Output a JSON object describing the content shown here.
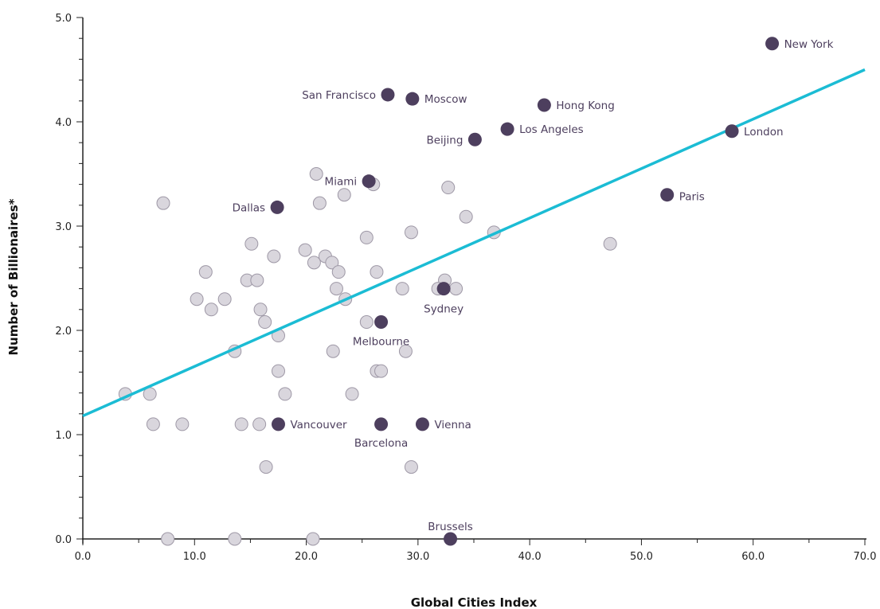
{
  "chart_data": {
    "type": "scatter",
    "title": "",
    "xlabel": "Global Cities Index",
    "ylabel": "Number of Billionaires*",
    "xlim": [
      0,
      70
    ],
    "ylim": [
      0,
      5
    ],
    "x_ticks": [
      "0.0",
      "10.0",
      "20.0",
      "30.0",
      "40.0",
      "50.0",
      "60.0",
      "70.0"
    ],
    "y_ticks": [
      "0.0",
      "1.0",
      "2.0",
      "3.0",
      "4.0",
      "5.0"
    ],
    "grid": false,
    "trendline": {
      "x": [
        0,
        70
      ],
      "y": [
        1.18,
        4.5
      ],
      "color": "#1bbcd4"
    },
    "colors": {
      "highlight": "#4d3f5e",
      "other_fill": "#d9d6dd",
      "other_stroke": "#9e98a6"
    },
    "labeled_points": [
      {
        "label": "New York",
        "x": 61.7,
        "y": 4.75
      },
      {
        "label": "San Francisco",
        "x": 27.3,
        "y": 4.26
      },
      {
        "label": "Moscow",
        "x": 29.5,
        "y": 4.22
      },
      {
        "label": "Hong Kong",
        "x": 41.3,
        "y": 4.16
      },
      {
        "label": "Los Angeles",
        "x": 38.0,
        "y": 3.93
      },
      {
        "label": "London",
        "x": 58.1,
        "y": 3.91
      },
      {
        "label": "Beijing",
        "x": 35.1,
        "y": 3.83
      },
      {
        "label": "Miami",
        "x": 25.6,
        "y": 3.43
      },
      {
        "label": "Paris",
        "x": 52.3,
        "y": 3.3
      },
      {
        "label": "Dallas",
        "x": 17.4,
        "y": 3.18
      },
      {
        "label": "Sydney",
        "x": 32.3,
        "y": 2.4
      },
      {
        "label": "Melbourne",
        "x": 26.7,
        "y": 2.08
      },
      {
        "label": "Vancouver",
        "x": 17.5,
        "y": 1.1
      },
      {
        "label": "Barcelona",
        "x": 26.7,
        "y": 1.1
      },
      {
        "label": "Vienna",
        "x": 30.4,
        "y": 1.1
      },
      {
        "label": "Brussels",
        "x": 32.9,
        "y": 0.0
      }
    ],
    "other_points": [
      {
        "x": 7.2,
        "y": 3.22
      },
      {
        "x": 20.9,
        "y": 3.5
      },
      {
        "x": 26.0,
        "y": 3.4
      },
      {
        "x": 23.4,
        "y": 3.3
      },
      {
        "x": 21.2,
        "y": 3.22
      },
      {
        "x": 32.7,
        "y": 3.37
      },
      {
        "x": 34.3,
        "y": 3.09
      },
      {
        "x": 29.4,
        "y": 2.94
      },
      {
        "x": 36.8,
        "y": 2.94
      },
      {
        "x": 47.2,
        "y": 2.83
      },
      {
        "x": 25.4,
        "y": 2.89
      },
      {
        "x": 15.1,
        "y": 2.83
      },
      {
        "x": 19.9,
        "y": 2.77
      },
      {
        "x": 17.1,
        "y": 2.71
      },
      {
        "x": 21.7,
        "y": 2.71
      },
      {
        "x": 20.7,
        "y": 2.65
      },
      {
        "x": 22.3,
        "y": 2.65
      },
      {
        "x": 11.0,
        "y": 2.56
      },
      {
        "x": 22.9,
        "y": 2.56
      },
      {
        "x": 26.3,
        "y": 2.56
      },
      {
        "x": 14.7,
        "y": 2.48
      },
      {
        "x": 15.6,
        "y": 2.48
      },
      {
        "x": 32.4,
        "y": 2.48
      },
      {
        "x": 22.7,
        "y": 2.4
      },
      {
        "x": 28.6,
        "y": 2.4
      },
      {
        "x": 31.8,
        "y": 2.4
      },
      {
        "x": 33.4,
        "y": 2.4
      },
      {
        "x": 10.2,
        "y": 2.3
      },
      {
        "x": 12.7,
        "y": 2.3
      },
      {
        "x": 23.5,
        "y": 2.3
      },
      {
        "x": 11.5,
        "y": 2.2
      },
      {
        "x": 15.9,
        "y": 2.2
      },
      {
        "x": 16.3,
        "y": 2.08
      },
      {
        "x": 25.4,
        "y": 2.08
      },
      {
        "x": 17.5,
        "y": 1.95
      },
      {
        "x": 13.6,
        "y": 1.8
      },
      {
        "x": 22.4,
        "y": 1.8
      },
      {
        "x": 28.9,
        "y": 1.8
      },
      {
        "x": 17.5,
        "y": 1.61
      },
      {
        "x": 26.3,
        "y": 1.61
      },
      {
        "x": 26.7,
        "y": 1.61
      },
      {
        "x": 3.8,
        "y": 1.39
      },
      {
        "x": 6.0,
        "y": 1.39
      },
      {
        "x": 18.1,
        "y": 1.39
      },
      {
        "x": 24.1,
        "y": 1.39
      },
      {
        "x": 6.3,
        "y": 1.1
      },
      {
        "x": 8.9,
        "y": 1.1
      },
      {
        "x": 14.2,
        "y": 1.1
      },
      {
        "x": 15.8,
        "y": 1.1
      },
      {
        "x": 16.4,
        "y": 0.69
      },
      {
        "x": 29.4,
        "y": 0.69
      },
      {
        "x": 7.6,
        "y": 0.0
      },
      {
        "x": 13.6,
        "y": 0.0
      },
      {
        "x": 20.6,
        "y": 0.0
      }
    ]
  }
}
